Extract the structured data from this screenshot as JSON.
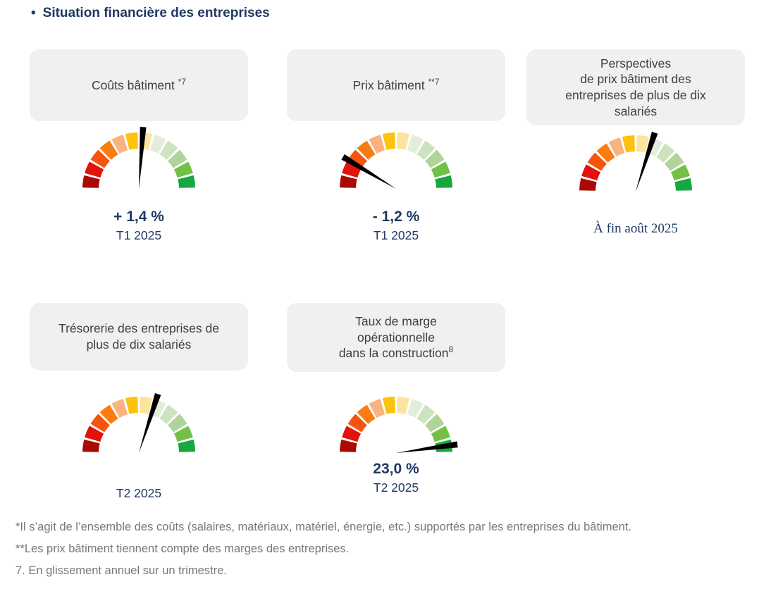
{
  "title": {
    "bullet": "•",
    "text": "Situation financière des entreprises"
  },
  "colors": {
    "navy": "#1F3864",
    "card_bg": "#F0F0EF",
    "card_text": "#3F3F3F",
    "footnote_gray": "#77777F",
    "needle": "#000000"
  },
  "gauge_colors": [
    "#A90A05",
    "#E3120B",
    "#F4540D",
    "#F97D10",
    "#F9B381",
    "#FCC20D",
    "#FCE49E",
    "#E3EEDA",
    "#CDE3BF",
    "#AED49A",
    "#72C146",
    "#16A83F"
  ],
  "gauges": [
    {
      "id": "couts-batiment",
      "card_lines": [
        "Coûts bâtiment "
      ],
      "card_sup": "*7",
      "needle_deg": 86,
      "value": "+ 1,4 %",
      "period": "T1 2025"
    },
    {
      "id": "prix-batiment",
      "card_lines": [
        "Prix bâtiment "
      ],
      "card_sup": "**7",
      "needle_deg": 149,
      "value": "- 1,2 %",
      "period": "T1 2025"
    },
    {
      "id": "perspectives-prix",
      "card_lines": [
        "Perspectives",
        "de prix bâtiment des",
        "entreprises de plus de dix",
        "salariés"
      ],
      "card_sup": "",
      "needle_deg": 72,
      "value": "",
      "period": "À fin août 2025"
    },
    {
      "id": "tresorerie",
      "card_lines": [
        "Trésorerie des entreprises de",
        "plus de dix salariés"
      ],
      "card_sup": "",
      "needle_deg": 72,
      "value": "",
      "period": "T2 2025"
    },
    {
      "id": "taux-marge",
      "card_lines": [
        "Taux de marge",
        "opérationnelle",
        "dans la construction"
      ],
      "card_sup": "8",
      "needle_deg": 8,
      "value": "23,0 %",
      "period": "T2 2025"
    }
  ],
  "footnotes": [
    "*Il s’agit de l’ensemble des coûts (salaires, matériaux, matériel, énergie, etc.) supportés par les entreprises du bâtiment.",
    "**Les prix bâtiment tiennent compte des marges des entreprises.",
    "7. En glissement annuel sur un trimestre."
  ],
  "chart_data": [
    {
      "type": "gauge",
      "title": "Coûts bâtiment *7",
      "reading_label": "+ 1,4 %",
      "period": "T1 2025",
      "needle_angle_deg_from_east": 86,
      "needle_position": "just right of vertical (neutral, slightly positive)",
      "scale": "semicircular 180°, 12 segments from dark red (left) to green (right)"
    },
    {
      "type": "gauge",
      "title": "Prix bâtiment **7",
      "reading_label": "- 1,2 %",
      "period": "T1 2025",
      "needle_angle_deg_from_east": 149,
      "needle_position": "upper-left red zone (negative)",
      "scale": "semicircular 180°, 12 segments from dark red (left) to green (right)"
    },
    {
      "type": "gauge",
      "title": "Perspectives de prix bâtiment des entreprises de plus de dix salariés",
      "reading_label": "",
      "period": "À fin août 2025",
      "needle_angle_deg_from_east": 72,
      "needle_position": "slightly right of vertical (mildly positive)",
      "scale": "semicircular 180°, 12 segments from dark red (left) to green (right)"
    },
    {
      "type": "gauge",
      "title": "Trésorerie des entreprises de plus de dix salariés",
      "reading_label": "",
      "period": "T2 2025",
      "needle_angle_deg_from_east": 72,
      "needle_position": "slightly right of vertical (mildly positive)",
      "scale": "semicircular 180°, 12 segments from dark red (left) to green (right)"
    },
    {
      "type": "gauge",
      "title": "Taux de marge opérationnelle dans la construction8",
      "reading_label": "23,0 %",
      "period": "T2 2025",
      "needle_angle_deg_from_east": 8,
      "needle_position": "far right green zone (positive)",
      "scale": "semicircular 180°, 12 segments from dark red (left) to green (right)"
    }
  ]
}
